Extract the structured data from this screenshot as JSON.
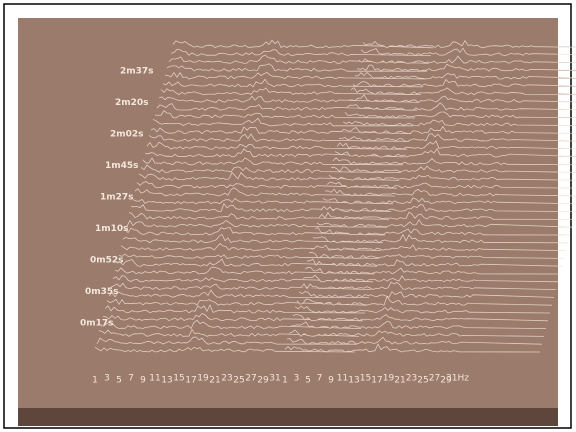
{
  "time_labels": [
    "0m17s",
    "0m35s",
    "0m52s",
    "1m10s",
    "1m27s",
    "1m45s",
    "2m02s",
    "2m20s",
    "2m37s"
  ],
  "left_freq_labels": [
    "1",
    "3",
    "5",
    "7",
    "9",
    "11",
    "13",
    "15",
    "17",
    "19",
    "21",
    "23",
    "25",
    "27",
    "29",
    "31"
  ],
  "right_freq_labels": [
    "1",
    "3",
    "5",
    "7",
    "9",
    "11",
    "13",
    "15",
    "17",
    "19",
    "21",
    "23",
    "25",
    "27",
    "29",
    "31Hz"
  ]
}
